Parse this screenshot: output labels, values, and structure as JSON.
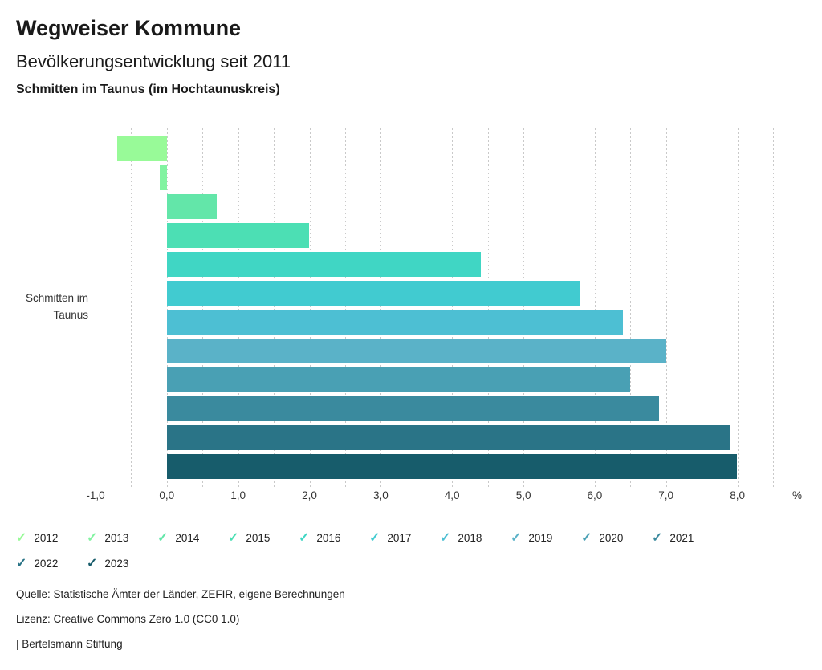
{
  "header": {
    "title": "Wegweiser Kommune",
    "subtitle": "Bevölkerungsentwicklung seit 2011",
    "region": "Schmitten im Taunus (im Hochtaunuskreis)"
  },
  "chart_data": {
    "type": "bar",
    "orientation": "horizontal",
    "title": "Bevölkerungsentwicklung seit 2011",
    "y_axis_label_lines": [
      "Schmitten im",
      "Taunus"
    ],
    "categories": [
      "2012",
      "2013",
      "2014",
      "2015",
      "2016",
      "2017",
      "2018",
      "2019",
      "2020",
      "2021",
      "2022",
      "2023"
    ],
    "values": [
      -0.7,
      -0.1,
      0.7,
      2.0,
      4.4,
      5.8,
      6.4,
      7.0,
      6.5,
      6.9,
      7.9,
      8.0
    ],
    "colors": [
      "#98fa98",
      "#82f3a1",
      "#63e6a9",
      "#4cdfb4",
      "#40d6c4",
      "#41cbd0",
      "#4dbfd3",
      "#5ab2c8",
      "#49a0b4",
      "#3a8a9e",
      "#2a7487",
      "#175c6b"
    ],
    "xlim": [
      -1.0,
      8.5
    ],
    "grid_step": 0.5,
    "grid": true,
    "xticks": [
      {
        "v": -1,
        "label": "-1,0"
      },
      {
        "v": 0,
        "label": "0,0"
      },
      {
        "v": 1,
        "label": "1,0"
      },
      {
        "v": 2,
        "label": "2,0"
      },
      {
        "v": 3,
        "label": "3,0"
      },
      {
        "v": 4,
        "label": "4,0"
      },
      {
        "v": 5,
        "label": "5,0"
      },
      {
        "v": 6,
        "label": "6,0"
      },
      {
        "v": 7,
        "label": "7,0"
      },
      {
        "v": 8,
        "label": "8,0"
      }
    ],
    "unit_label": "%",
    "legend_position": "bottom",
    "legend_check_icon": "✓"
  },
  "footer": {
    "source": "Quelle: Statistische Ämter der Länder, ZEFIR, eigene Berechnungen",
    "license": "Lizenz: Creative Commons Zero 1.0 (CC0 1.0)",
    "attribution": "| Bertelsmann Stiftung"
  }
}
